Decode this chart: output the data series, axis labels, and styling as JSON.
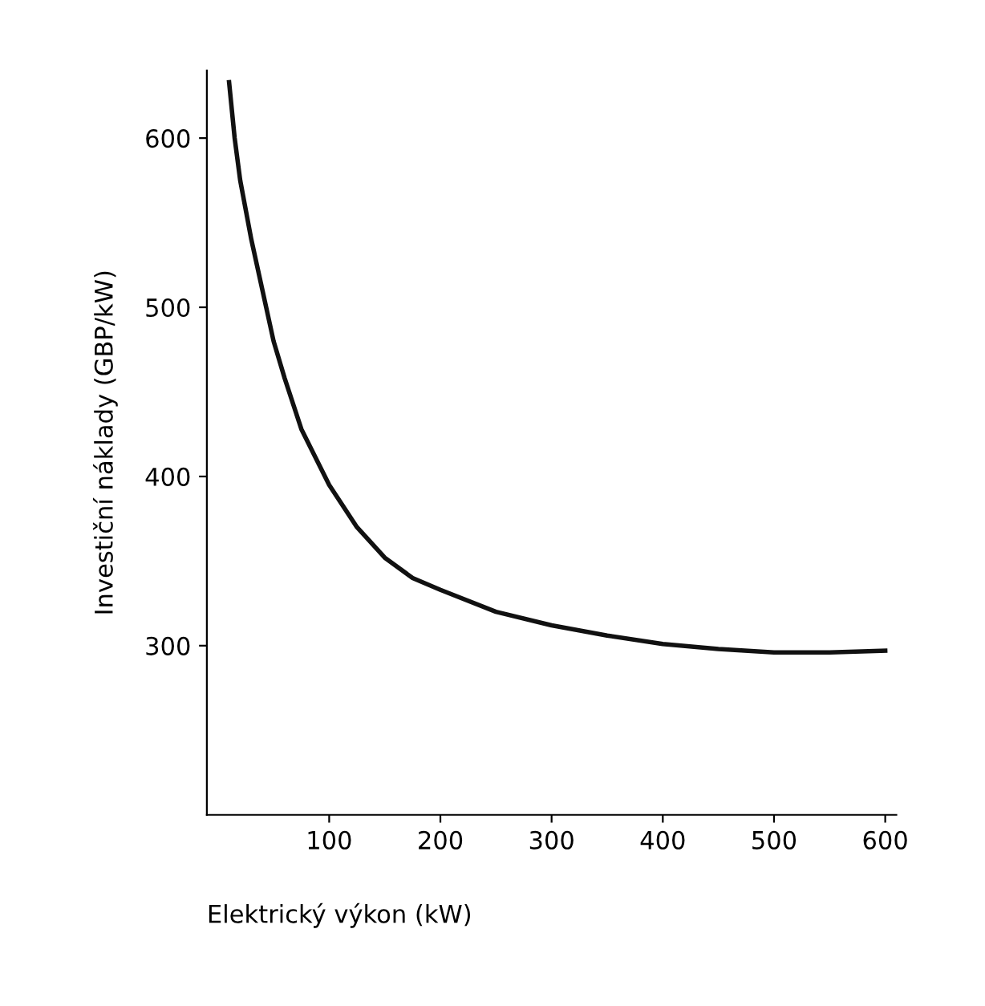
{
  "chart_data": {
    "type": "line",
    "xlabel": "Elektrický výkon (kW)",
    "ylabel": "Investiční náklady (GBP/kW)",
    "x": [
      10,
      15,
      20,
      30,
      40,
      50,
      60,
      75,
      100,
      125,
      150,
      175,
      200,
      250,
      300,
      350,
      400,
      450,
      500,
      550,
      600
    ],
    "series": [
      {
        "color": "#111111",
        "values": [
          633,
          600,
          575,
          540,
          510,
          480,
          458,
          428,
          395,
          370,
          352,
          340,
          333,
          320,
          312,
          306,
          301,
          298,
          296,
          296,
          297
        ]
      }
    ],
    "xlim": [
      -10,
      610
    ],
    "ylim": [
      200,
      640
    ],
    "xticks": [
      100,
      200,
      300,
      400,
      500,
      600
    ],
    "yticks": [
      300,
      400,
      500,
      600
    ],
    "grid": false,
    "legend": false,
    "marker": "none",
    "line_style": "solid"
  }
}
